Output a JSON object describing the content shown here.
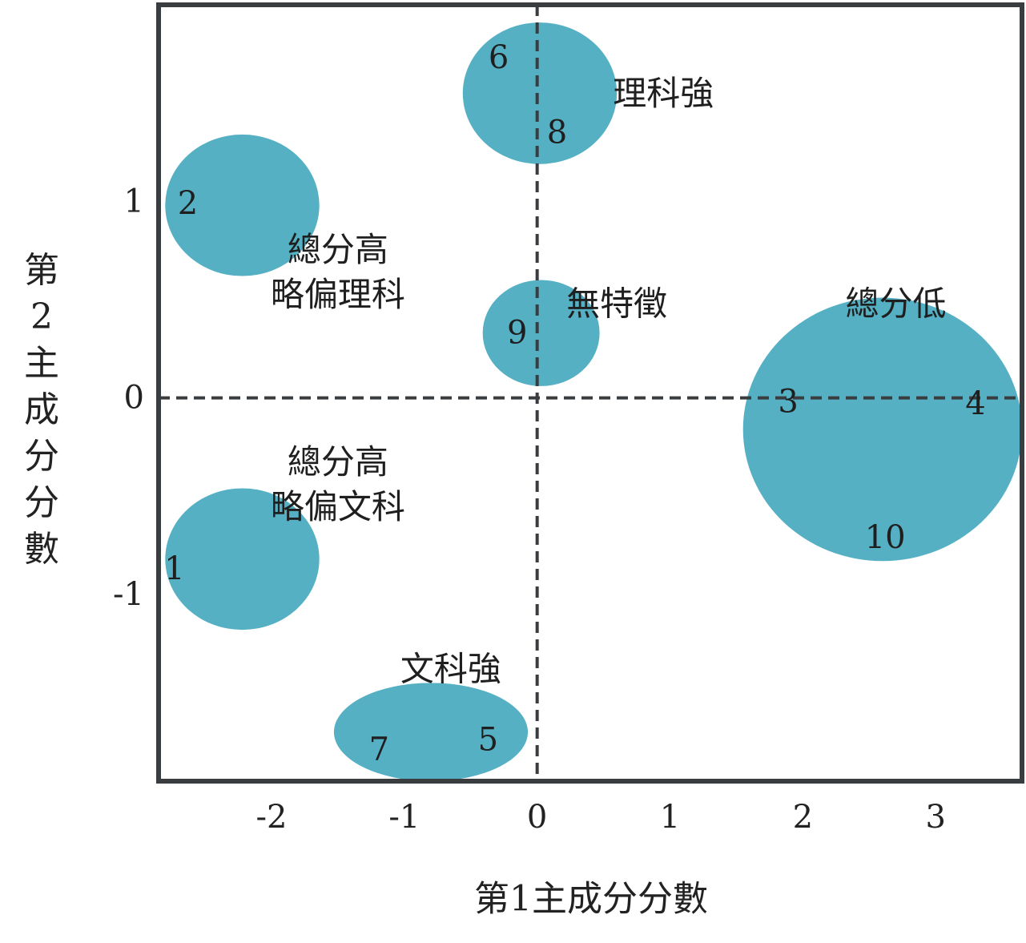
{
  "chart_data": {
    "type": "scatter",
    "xlabel": "第1主成分分數",
    "ylabel": "第2主成分分數",
    "xlim": [
      -2.85,
      3.65
    ],
    "ylim": [
      -1.95,
      2.0
    ],
    "x_ticks": [
      "-2",
      "-1",
      "0",
      "1",
      "2",
      "3"
    ],
    "y_ticks": [
      "1",
      "0",
      "-1"
    ],
    "grid": false,
    "bubble_color": "#55b0c4",
    "points": [
      {
        "label": "1",
        "x": -2.73,
        "y": -0.87
      },
      {
        "label": "2",
        "x": -2.63,
        "y": 0.99
      },
      {
        "label": "3",
        "x": 1.89,
        "y": -0.02
      },
      {
        "label": "4",
        "x": 3.3,
        "y": -0.03
      },
      {
        "label": "5",
        "x": -0.37,
        "y": -1.74
      },
      {
        "label": "6",
        "x": -0.29,
        "y": 1.73
      },
      {
        "label": "7",
        "x": -1.19,
        "y": -1.79
      },
      {
        "label": "8",
        "x": 0.15,
        "y": 1.35
      },
      {
        "label": "9",
        "x": -0.15,
        "y": 0.33
      },
      {
        "label": "10",
        "x": 2.62,
        "y": -0.71
      }
    ],
    "groups": [
      {
        "lines": [
          "理科強"
        ],
        "points": [
          "6",
          "8"
        ],
        "ellipse": {
          "cx": 0.02,
          "cy": 1.55,
          "rx": 0.58,
          "ry": 0.36
        },
        "label_at": [
          0.95,
          1.55
        ]
      },
      {
        "lines": [
          "總分高",
          "略偏理科"
        ],
        "points": [
          "2"
        ],
        "ellipse": {
          "cx": -2.22,
          "cy": 0.98,
          "rx": 0.58,
          "ry": 0.36
        },
        "label_at": [
          -1.5,
          0.64
        ]
      },
      {
        "lines": [
          "無特徵"
        ],
        "points": [
          "9"
        ],
        "ellipse": {
          "cx": 0.03,
          "cy": 0.33,
          "rx": 0.44,
          "ry": 0.27
        },
        "label_at": [
          0.6,
          0.48
        ]
      },
      {
        "lines": [
          "總分低"
        ],
        "points": [
          "3",
          "4",
          "10"
        ],
        "ellipse": {
          "cx": 2.6,
          "cy": -0.16,
          "rx": 1.05,
          "ry": 0.67
        },
        "label_at": [
          2.7,
          0.48
        ]
      },
      {
        "lines": [
          "總分高",
          "略偏文科"
        ],
        "points": [
          "1"
        ],
        "ellipse": {
          "cx": -2.22,
          "cy": -0.82,
          "rx": 0.58,
          "ry": 0.36
        },
        "label_at": [
          -1.5,
          -0.44
        ]
      },
      {
        "lines": [
          "文科強"
        ],
        "points": [
          "7",
          "5"
        ],
        "ellipse": {
          "cx": -0.8,
          "cy": -1.7,
          "rx": 0.73,
          "ry": 0.25
        },
        "label_at": [
          -0.65,
          -1.38
        ]
      }
    ]
  }
}
